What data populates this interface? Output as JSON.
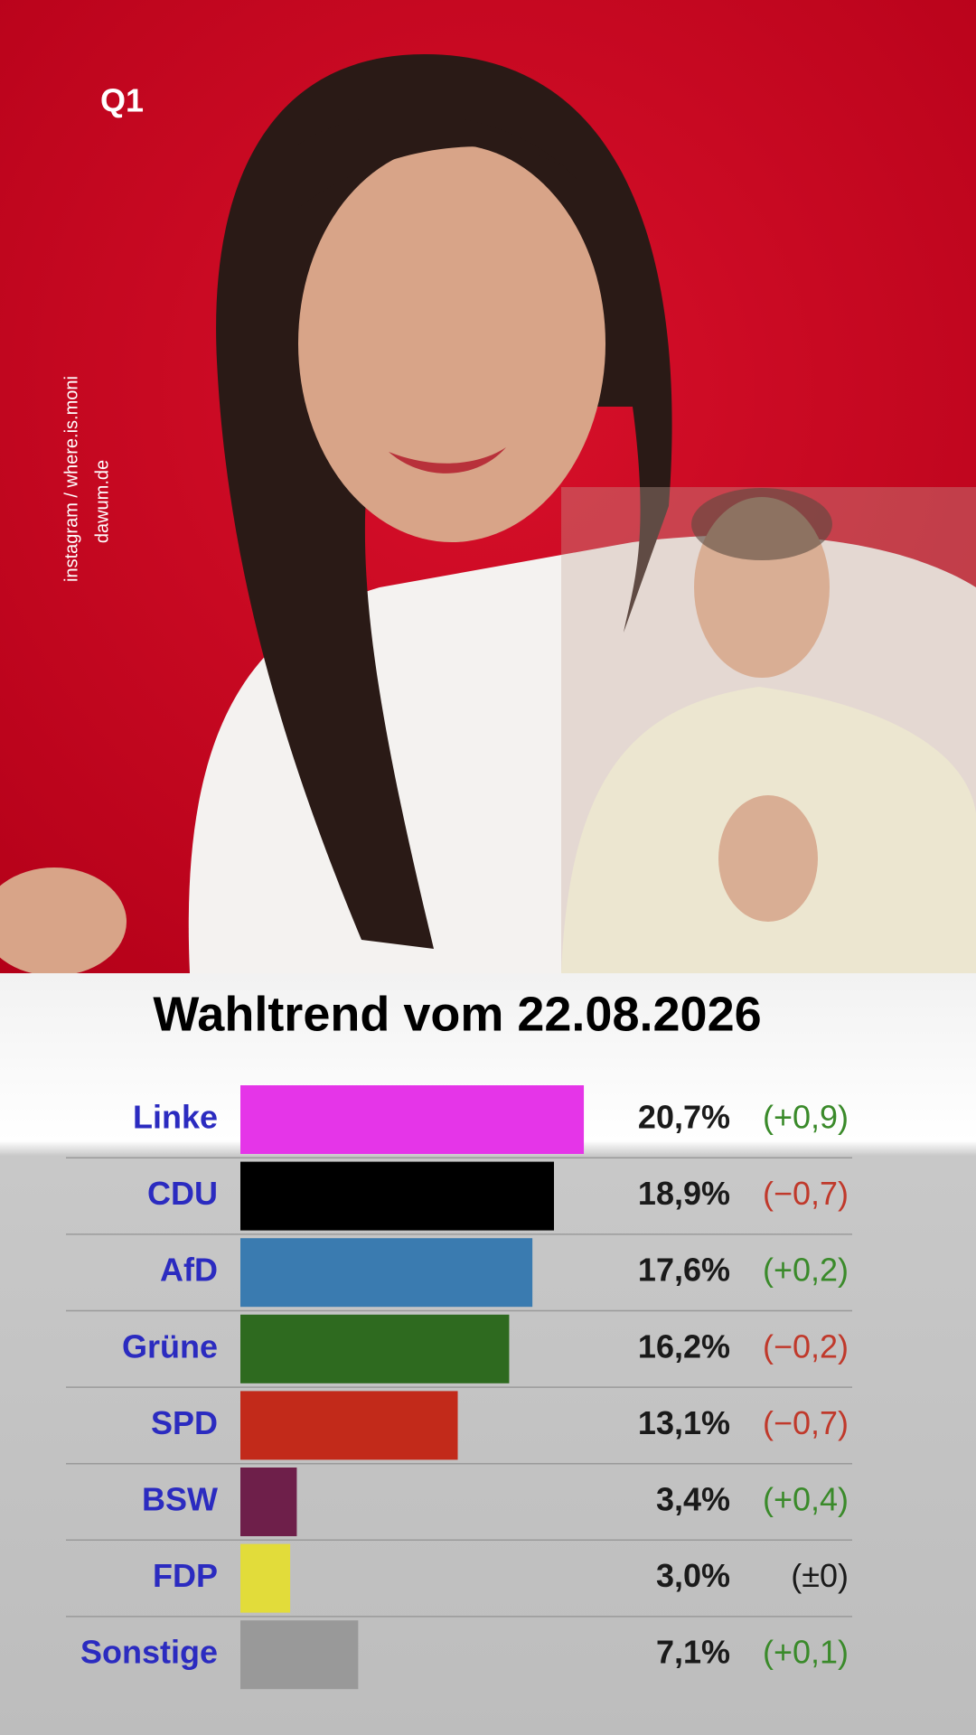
{
  "overlay": {
    "logo": "Q1",
    "credits": [
      "instagram / where.is.moni",
      "dawum.de"
    ]
  },
  "chart_data": {
    "type": "bar",
    "orientation": "horizontal",
    "title": "Wahltrend vom 22.08.2026",
    "categories": [
      "Linke",
      "CDU",
      "AfD",
      "Grüne",
      "SPD",
      "BSW",
      "FDP",
      "Sonstige"
    ],
    "values": [
      20.7,
      18.9,
      17.6,
      16.2,
      13.1,
      3.4,
      3.0,
      7.1
    ],
    "value_labels": [
      "20,7%",
      "18,9%",
      "17,6%",
      "16,2%",
      "13,1%",
      "3,4%",
      "3,0%",
      "7,1%"
    ],
    "colors": [
      "#e535e8",
      "#000000",
      "#3a7bb0",
      "#2e6a1f",
      "#c22a1a",
      "#6e1f4a",
      "#e2dc3a",
      "#999999"
    ],
    "changes": [
      0.9,
      -0.7,
      0.2,
      -0.2,
      -0.7,
      0.4,
      0,
      0.1
    ],
    "change_labels": [
      "(+0,9)",
      "(−0,7)",
      "(+0,2)",
      "(−0,2)",
      "(−0,7)",
      "(+0,4)",
      "(±0)",
      "(+0,1)"
    ],
    "xlim": [
      0,
      25
    ]
  }
}
